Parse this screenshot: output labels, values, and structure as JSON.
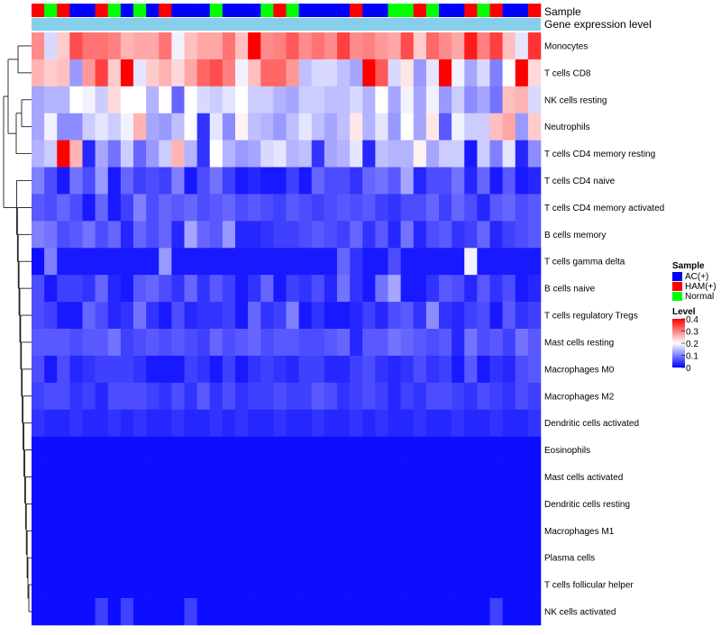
{
  "chart_data": {
    "type": "heatmap",
    "title": "",
    "column_annotations": [
      {
        "name": "Sample",
        "label": "Sample"
      },
      {
        "name": "Gene expression level",
        "label": "Gene expression level"
      }
    ],
    "sample_groups": [
      {
        "label": "AC(+)",
        "color": "#0000ff"
      },
      {
        "label": "HAM(+)",
        "color": "#ff0000"
      },
      {
        "label": "Normal",
        "color": "#00ff00"
      }
    ],
    "column_samples": [
      "HAM(+)",
      "Normal",
      "HAM(+)",
      "AC(+)",
      "AC(+)",
      "HAM(+)",
      "Normal",
      "AC(+)",
      "Normal",
      "AC(+)",
      "HAM(+)",
      "AC(+)",
      "AC(+)",
      "AC(+)",
      "Normal",
      "AC(+)",
      "AC(+)",
      "AC(+)",
      "Normal",
      "HAM(+)",
      "Normal",
      "AC(+)",
      "AC(+)",
      "AC(+)",
      "AC(+)",
      "HAM(+)",
      "AC(+)",
      "AC(+)",
      "Normal",
      "Normal",
      "HAM(+)",
      "Normal",
      "AC(+)",
      "AC(+)",
      "HAM(+)",
      "Normal",
      "HAM(+)",
      "AC(+)",
      "AC(+)",
      "HAM(+)"
    ],
    "expression_bar_color": "#87ceeb",
    "rows": [
      "Monocytes",
      "T cells CD8",
      "NK cells resting",
      "Neutrophils",
      "T cells CD4 memory resting",
      "T cells CD4 naive",
      "T cells CD4 memory activated",
      "B cells memory",
      "T cells gamma delta",
      "B cells naive",
      "T cells regulatory  Tregs",
      "Mast cells resting",
      "Macrophages M0",
      "Macrophages M2",
      "Dendritic cells activated",
      "Eosinophils",
      "Mast cells activated",
      "Dendritic cells resting",
      "Macrophages M1",
      "Plasma cells",
      "T cells follicular helper",
      "NK cells activated"
    ],
    "values": [
      [
        0.29,
        0.17,
        0.24,
        0.34,
        0.31,
        0.31,
        0.3,
        0.26,
        0.27,
        0.27,
        0.31,
        0.19,
        0.25,
        0.27,
        0.27,
        0.31,
        0.25,
        0.4,
        0.29,
        0.3,
        0.33,
        0.29,
        0.31,
        0.29,
        0.35,
        0.29,
        0.3,
        0.28,
        0.27,
        0.34,
        0.24,
        0.32,
        0.29,
        0.27,
        0.38,
        0.3,
        0.35,
        0.25,
        0.18,
        0.36
      ],
      [
        0.26,
        0.24,
        0.25,
        0.12,
        0.28,
        0.35,
        0.24,
        0.4,
        0.18,
        0.24,
        0.26,
        0.23,
        0.27,
        0.32,
        0.34,
        0.3,
        0.19,
        0.25,
        0.32,
        0.32,
        0.28,
        0.15,
        0.17,
        0.17,
        0.15,
        0.13,
        0.4,
        0.33,
        0.17,
        0.22,
        0.12,
        0.18,
        0.4,
        0.19,
        0.13,
        0.17,
        0.1,
        0.2,
        0.4,
        0.23
      ],
      [
        0.13,
        0.14,
        0.14,
        0.2,
        0.19,
        0.16,
        0.23,
        0.2,
        0.2,
        0.14,
        0.2,
        0.08,
        0.2,
        0.17,
        0.16,
        0.18,
        0.2,
        0.16,
        0.16,
        0.14,
        0.13,
        0.16,
        0.16,
        0.15,
        0.15,
        0.17,
        0.14,
        0.2,
        0.13,
        0.19,
        0.13,
        0.19,
        0.12,
        0.16,
        0.11,
        0.13,
        0.09,
        0.25,
        0.26,
        0.17
      ],
      [
        0.13,
        0.19,
        0.11,
        0.11,
        0.16,
        0.18,
        0.16,
        0.19,
        0.26,
        0.13,
        0.12,
        0.15,
        0.2,
        0.04,
        0.18,
        0.11,
        0.21,
        0.15,
        0.14,
        0.12,
        0.15,
        0.18,
        0.15,
        0.13,
        0.15,
        0.22,
        0.14,
        0.18,
        0.12,
        0.2,
        0.13,
        0.22,
        0.07,
        0.19,
        0.16,
        0.16,
        0.25,
        0.27,
        0.12,
        0.24
      ],
      [
        0.14,
        0.16,
        0.4,
        0.26,
        0.03,
        0.13,
        0.09,
        0.16,
        0.08,
        0.12,
        0.16,
        0.26,
        0.14,
        0.04,
        0.2,
        0.14,
        0.12,
        0.13,
        0.17,
        0.18,
        0.14,
        0.15,
        0.04,
        0.13,
        0.14,
        0.18,
        0.03,
        0.15,
        0.14,
        0.14,
        0.21,
        0.13,
        0.16,
        0.16,
        0.02,
        0.16,
        0.1,
        0.18,
        0.03,
        0.11
      ],
      [
        0.1,
        0.06,
        0.02,
        0.09,
        0.06,
        0.12,
        0.02,
        0.08,
        0.05,
        0.06,
        0.05,
        0.1,
        0.02,
        0.06,
        0.09,
        0.05,
        0.02,
        0.03,
        0.02,
        0.02,
        0.05,
        0.02,
        0.08,
        0.06,
        0.06,
        0.04,
        0.08,
        0.09,
        0.07,
        0.13,
        0.03,
        0.06,
        0.06,
        0.09,
        0.03,
        0.08,
        0.02,
        0.07,
        0.02,
        0.03
      ],
      [
        0.07,
        0.06,
        0.08,
        0.06,
        0.02,
        0.08,
        0.02,
        0.05,
        0.1,
        0.06,
        0.08,
        0.07,
        0.08,
        0.06,
        0.07,
        0.08,
        0.06,
        0.07,
        0.06,
        0.05,
        0.07,
        0.06,
        0.05,
        0.06,
        0.07,
        0.06,
        0.07,
        0.05,
        0.04,
        0.06,
        0.06,
        0.08,
        0.05,
        0.08,
        0.06,
        0.03,
        0.07,
        0.08,
        0.06,
        0.07
      ],
      [
        0.1,
        0.09,
        0.06,
        0.07,
        0.09,
        0.06,
        0.08,
        0.03,
        0.08,
        0.06,
        0.08,
        0.03,
        0.13,
        0.08,
        0.07,
        0.12,
        0.03,
        0.03,
        0.04,
        0.05,
        0.05,
        0.06,
        0.07,
        0.06,
        0.05,
        0.08,
        0.04,
        0.07,
        0.03,
        0.09,
        0.03,
        0.06,
        0.07,
        0.04,
        0.05,
        0.08,
        0.03,
        0.05,
        0.06,
        0.07
      ],
      [
        0.01,
        0.1,
        0.02,
        0.02,
        0.02,
        0.02,
        0.02,
        0.02,
        0.02,
        0.02,
        0.12,
        0.02,
        0.02,
        0.02,
        0.02,
        0.02,
        0.02,
        0.02,
        0.02,
        0.02,
        0.02,
        0.02,
        0.02,
        0.02,
        0.08,
        0.04,
        0.02,
        0.02,
        0.06,
        0.02,
        0.02,
        0.02,
        0.02,
        0.02,
        0.19,
        0.02,
        0.02,
        0.02,
        0.02,
        0.02
      ],
      [
        0.06,
        0.02,
        0.05,
        0.05,
        0.04,
        0.08,
        0.03,
        0.02,
        0.07,
        0.08,
        0.06,
        0.04,
        0.08,
        0.04,
        0.07,
        0.05,
        0.02,
        0.04,
        0.08,
        0.02,
        0.05,
        0.04,
        0.06,
        0.03,
        0.09,
        0.04,
        0.02,
        0.09,
        0.13,
        0.02,
        0.02,
        0.04,
        0.07,
        0.06,
        0.03,
        0.07,
        0.04,
        0.06,
        0.02,
        0.03
      ],
      [
        0.06,
        0.05,
        0.02,
        0.02,
        0.08,
        0.06,
        0.03,
        0.04,
        0.09,
        0.04,
        0.02,
        0.06,
        0.03,
        0.04,
        0.04,
        0.05,
        0.02,
        0.08,
        0.04,
        0.05,
        0.1,
        0.02,
        0.04,
        0.02,
        0.02,
        0.03,
        0.05,
        0.03,
        0.06,
        0.07,
        0.04,
        0.11,
        0.04,
        0.03,
        0.05,
        0.06,
        0.02,
        0.07,
        0.04,
        0.05
      ],
      [
        0.07,
        0.07,
        0.07,
        0.06,
        0.07,
        0.07,
        0.09,
        0.05,
        0.06,
        0.07,
        0.06,
        0.07,
        0.06,
        0.05,
        0.08,
        0.06,
        0.07,
        0.08,
        0.06,
        0.07,
        0.07,
        0.06,
        0.06,
        0.07,
        0.08,
        0.03,
        0.07,
        0.07,
        0.09,
        0.08,
        0.07,
        0.06,
        0.07,
        0.03,
        0.09,
        0.06,
        0.07,
        0.05,
        0.09,
        0.07
      ],
      [
        0.06,
        0.02,
        0.06,
        0.03,
        0.04,
        0.05,
        0.05,
        0.05,
        0.04,
        0.02,
        0.02,
        0.02,
        0.05,
        0.04,
        0.02,
        0.05,
        0.02,
        0.04,
        0.05,
        0.04,
        0.03,
        0.05,
        0.05,
        0.03,
        0.03,
        0.05,
        0.06,
        0.04,
        0.03,
        0.04,
        0.06,
        0.04,
        0.05,
        0.02,
        0.07,
        0.02,
        0.04,
        0.03,
        0.06,
        0.07
      ],
      [
        0.05,
        0.06,
        0.06,
        0.04,
        0.05,
        0.03,
        0.06,
        0.06,
        0.06,
        0.05,
        0.04,
        0.06,
        0.04,
        0.07,
        0.04,
        0.06,
        0.04,
        0.05,
        0.05,
        0.06,
        0.05,
        0.05,
        0.07,
        0.06,
        0.04,
        0.05,
        0.06,
        0.05,
        0.03,
        0.05,
        0.04,
        0.06,
        0.06,
        0.05,
        0.04,
        0.06,
        0.05,
        0.04,
        0.06,
        0.05
      ],
      [
        0.04,
        0.03,
        0.03,
        0.04,
        0.03,
        0.03,
        0.04,
        0.03,
        0.04,
        0.03,
        0.03,
        0.04,
        0.03,
        0.03,
        0.04,
        0.03,
        0.04,
        0.03,
        0.03,
        0.04,
        0.03,
        0.03,
        0.04,
        0.03,
        0.03,
        0.04,
        0.03,
        0.04,
        0.03,
        0.03,
        0.04,
        0.03,
        0.03,
        0.04,
        0.03,
        0.03,
        0.04,
        0.03,
        0.03,
        0.04
      ],
      [
        0.01,
        0.01,
        0.01,
        0.01,
        0.01,
        0.01,
        0.01,
        0.01,
        0.01,
        0.01,
        0.01,
        0.01,
        0.01,
        0.01,
        0.01,
        0.01,
        0.01,
        0.01,
        0.01,
        0.01,
        0.01,
        0.01,
        0.01,
        0.01,
        0.01,
        0.01,
        0.01,
        0.01,
        0.01,
        0.01,
        0.01,
        0.01,
        0.01,
        0.01,
        0.01,
        0.01,
        0.01,
        0.01,
        0.01,
        0.01
      ],
      [
        0.01,
        0.01,
        0.01,
        0.01,
        0.01,
        0.01,
        0.01,
        0.01,
        0.01,
        0.01,
        0.01,
        0.01,
        0.01,
        0.01,
        0.01,
        0.01,
        0.01,
        0.01,
        0.01,
        0.01,
        0.01,
        0.01,
        0.01,
        0.01,
        0.01,
        0.01,
        0.01,
        0.01,
        0.01,
        0.01,
        0.01,
        0.01,
        0.01,
        0.01,
        0.01,
        0.01,
        0.01,
        0.01,
        0.01,
        0.01
      ],
      [
        0.01,
        0.01,
        0.01,
        0.01,
        0.01,
        0.01,
        0.01,
        0.01,
        0.01,
        0.01,
        0.01,
        0.01,
        0.01,
        0.01,
        0.01,
        0.01,
        0.01,
        0.01,
        0.01,
        0.01,
        0.01,
        0.01,
        0.01,
        0.01,
        0.01,
        0.01,
        0.01,
        0.01,
        0.01,
        0.01,
        0.01,
        0.01,
        0.01,
        0.01,
        0.01,
        0.01,
        0.01,
        0.01,
        0.01,
        0.01
      ],
      [
        0.01,
        0.01,
        0.01,
        0.01,
        0.01,
        0.01,
        0.01,
        0.01,
        0.01,
        0.01,
        0.01,
        0.01,
        0.01,
        0.01,
        0.01,
        0.01,
        0.01,
        0.01,
        0.01,
        0.01,
        0.01,
        0.01,
        0.01,
        0.01,
        0.01,
        0.01,
        0.01,
        0.01,
        0.01,
        0.01,
        0.01,
        0.01,
        0.01,
        0.01,
        0.01,
        0.01,
        0.01,
        0.01,
        0.01,
        0.01
      ],
      [
        0.01,
        0.01,
        0.01,
        0.01,
        0.01,
        0.01,
        0.01,
        0.01,
        0.01,
        0.01,
        0.01,
        0.01,
        0.01,
        0.01,
        0.01,
        0.01,
        0.01,
        0.01,
        0.01,
        0.01,
        0.01,
        0.01,
        0.01,
        0.01,
        0.01,
        0.01,
        0.01,
        0.01,
        0.01,
        0.01,
        0.01,
        0.01,
        0.01,
        0.01,
        0.01,
        0.01,
        0.01,
        0.01,
        0.01,
        0.01
      ],
      [
        0.01,
        0.01,
        0.01,
        0.01,
        0.01,
        0.01,
        0.01,
        0.01,
        0.01,
        0.01,
        0.01,
        0.01,
        0.01,
        0.01,
        0.01,
        0.01,
        0.01,
        0.01,
        0.01,
        0.01,
        0.01,
        0.01,
        0.01,
        0.01,
        0.01,
        0.01,
        0.01,
        0.01,
        0.01,
        0.01,
        0.01,
        0.01,
        0.01,
        0.01,
        0.01,
        0.01,
        0.01,
        0.01,
        0.01,
        0.01
      ],
      [
        0.01,
        0.01,
        0.01,
        0.01,
        0.01,
        0.05,
        0.01,
        0.05,
        0.01,
        0.01,
        0.01,
        0.01,
        0.05,
        0.01,
        0.01,
        0.01,
        0.01,
        0.01,
        0.01,
        0.01,
        0.01,
        0.01,
        0.01,
        0.01,
        0.01,
        0.01,
        0.01,
        0.01,
        0.01,
        0.01,
        0.01,
        0.01,
        0.01,
        0.01,
        0.01,
        0.01,
        0.05,
        0.01,
        0.01,
        0.01
      ]
    ],
    "color_scale": {
      "min": 0,
      "mid": 0.2,
      "max": 0.4,
      "low": "#0000ff",
      "midColor": "#ffffff",
      "high": "#ff0000"
    },
    "legends": {
      "sample_title": "Sample",
      "level_title": "Level",
      "level_ticks": [
        "0.4",
        "0.3",
        "0.2",
        "0.1",
        "0"
      ]
    }
  }
}
